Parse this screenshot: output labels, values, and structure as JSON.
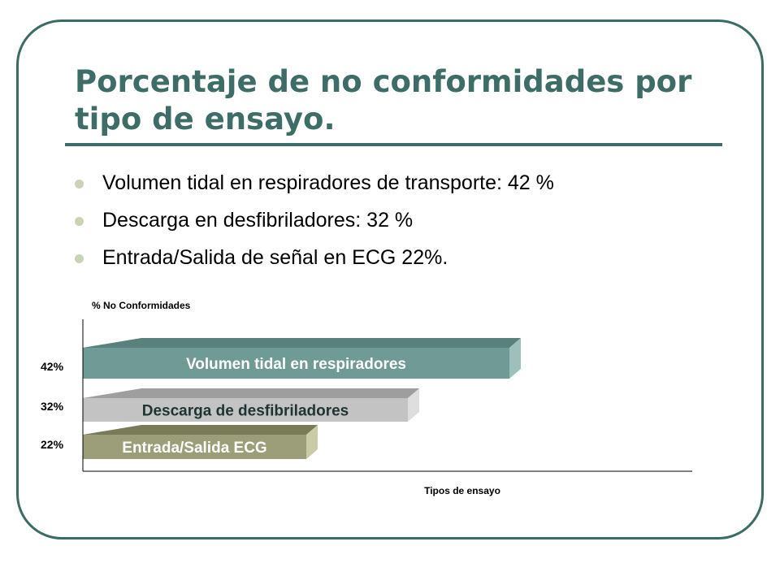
{
  "slide": {
    "title_line1": "Porcentaje  de no conformidades por",
    "title_line2": "tipo  de ensayo.",
    "bullets": [
      "Volumen tidal en respiradores de transporte: 42 %",
      "Descarga en desfibriladores: 32 %",
      "Entrada/Salida de señal en ECG  22%."
    ],
    "colors": {
      "frame": "#3c6b64",
      "title": "#3d6d66",
      "bullet_dot": "#c9d3b6"
    }
  },
  "chart_data": {
    "type": "bar",
    "orientation": "horizontal",
    "style": "3d",
    "ylabel": "% No Conformidades",
    "xlabel": "Tipos de ensayo",
    "xlim": [
      0,
      60
    ],
    "grid": false,
    "legend": "none",
    "categories": [
      "Volumen tidal en respiradores",
      "Descarga de desfibriladores",
      "Entrada/Salida ECG"
    ],
    "tick_labels": [
      "42%",
      "32%",
      "22%"
    ],
    "values": [
      42,
      32,
      22
    ],
    "colors": [
      {
        "front": "#6f9a95",
        "top": "#59807b",
        "side": "#9ec0bb"
      },
      {
        "front": "#c3c3c3",
        "top": "#9e9e9e",
        "side": "#dedede"
      },
      {
        "front": "#9c9e79",
        "top": "#787a58",
        "side": "#c9cba6"
      }
    ]
  }
}
